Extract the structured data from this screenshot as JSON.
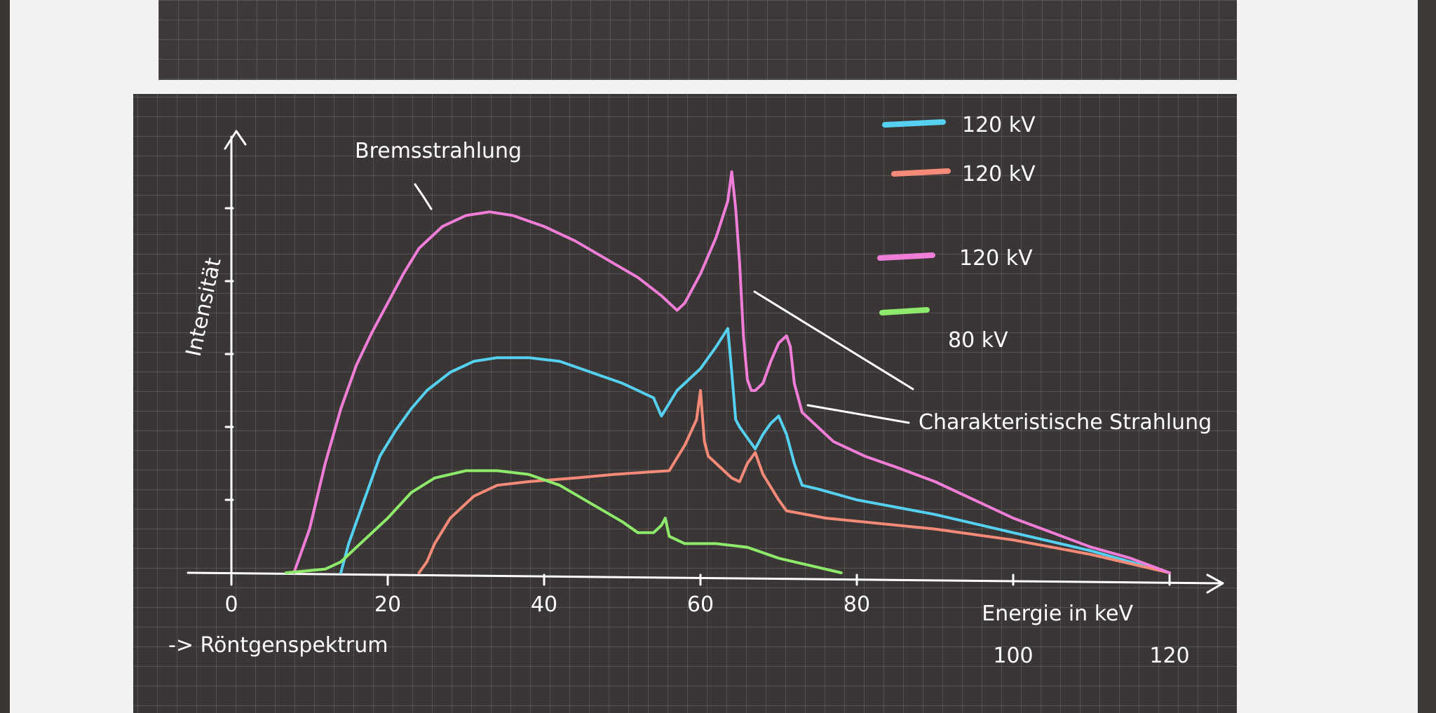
{
  "chart_data": {
    "type": "line",
    "title": "",
    "xlabel": "Energie in keV",
    "ylabel": "Intensität",
    "caption": "-> Röntgenspektrum",
    "xlim": [
      0,
      123
    ],
    "ylim": [
      0,
      100
    ],
    "x_ticks": [
      {
        "value": 0,
        "label": "0"
      },
      {
        "value": 20,
        "label": "20"
      },
      {
        "value": 40,
        "label": "40"
      },
      {
        "value": 60,
        "label": "60"
      },
      {
        "value": 80,
        "label": "80"
      },
      {
        "value": 100,
        "label": "100"
      },
      {
        "value": 120,
        "label": "120"
      }
    ],
    "y_ticks": [
      20,
      40,
      60,
      80,
      100
    ],
    "grid": true,
    "legend_position": "top-right",
    "annotations": [
      {
        "text": "Bremsstrahlung",
        "points_to": "continuous spectrum"
      },
      {
        "text": "Charakteristische Strahlung",
        "points_to": "peaks"
      }
    ],
    "series": [
      {
        "name": "120 kV",
        "color": "#55d0f0",
        "points": [
          [
            14,
            0
          ],
          [
            15,
            8
          ],
          [
            17,
            20
          ],
          [
            19,
            32
          ],
          [
            21,
            39
          ],
          [
            23,
            45
          ],
          [
            25,
            50
          ],
          [
            28,
            55
          ],
          [
            31,
            58
          ],
          [
            34,
            59
          ],
          [
            38,
            59
          ],
          [
            42,
            58
          ],
          [
            46,
            55
          ],
          [
            50,
            52
          ],
          [
            54,
            48
          ],
          [
            55,
            43
          ],
          [
            57,
            50
          ],
          [
            60,
            56
          ],
          [
            62,
            62
          ],
          [
            63.5,
            67
          ],
          [
            64,
            55
          ],
          [
            64.5,
            42
          ],
          [
            65,
            40
          ],
          [
            66,
            37
          ],
          [
            67,
            34
          ],
          [
            68,
            38
          ],
          [
            69,
            41
          ],
          [
            70,
            43
          ],
          [
            71,
            38
          ],
          [
            72,
            30
          ],
          [
            73,
            24
          ],
          [
            75,
            23
          ],
          [
            80,
            20
          ],
          [
            90,
            16
          ],
          [
            100,
            11
          ],
          [
            110,
            6
          ],
          [
            120,
            0
          ]
        ]
      },
      {
        "name": "120 kV",
        "color": "#f58a78",
        "points": [
          [
            24,
            0
          ],
          [
            25,
            3
          ],
          [
            26,
            8
          ],
          [
            28,
            15
          ],
          [
            31,
            21
          ],
          [
            34,
            24
          ],
          [
            38,
            25
          ],
          [
            44,
            26
          ],
          [
            49,
            27
          ],
          [
            56,
            28
          ],
          [
            58,
            35
          ],
          [
            59.5,
            42
          ],
          [
            60,
            50
          ],
          [
            60.5,
            36
          ],
          [
            61,
            32
          ],
          [
            62,
            30
          ],
          [
            64,
            26
          ],
          [
            65,
            25
          ],
          [
            66,
            30
          ],
          [
            67,
            33
          ],
          [
            67.5,
            30
          ],
          [
            68,
            27
          ],
          [
            70,
            20
          ],
          [
            71,
            17
          ],
          [
            76,
            15
          ],
          [
            90,
            12
          ],
          [
            100,
            9
          ],
          [
            110,
            5
          ],
          [
            120,
            0
          ]
        ]
      },
      {
        "name": "120 kV",
        "color": "#f07ed8",
        "points": [
          [
            8,
            0
          ],
          [
            10,
            12
          ],
          [
            12,
            30
          ],
          [
            14,
            45
          ],
          [
            16,
            57
          ],
          [
            18,
            66
          ],
          [
            20,
            74
          ],
          [
            22,
            82
          ],
          [
            24,
            89
          ],
          [
            27,
            95
          ],
          [
            30,
            98
          ],
          [
            33,
            99
          ],
          [
            36,
            98
          ],
          [
            40,
            95
          ],
          [
            44,
            91
          ],
          [
            48,
            86
          ],
          [
            52,
            81
          ],
          [
            55,
            76
          ],
          [
            57,
            72
          ],
          [
            58,
            74
          ],
          [
            60,
            82
          ],
          [
            62,
            92
          ],
          [
            63.5,
            102
          ],
          [
            64,
            110
          ],
          [
            64.5,
            100
          ],
          [
            65,
            85
          ],
          [
            65.5,
            65
          ],
          [
            66,
            53
          ],
          [
            66.5,
            50
          ],
          [
            67,
            50
          ],
          [
            68,
            52
          ],
          [
            69,
            58
          ],
          [
            70,
            63
          ],
          [
            71,
            65
          ],
          [
            71.5,
            62
          ],
          [
            72,
            52
          ],
          [
            73,
            44
          ],
          [
            75,
            40
          ],
          [
            77,
            36
          ],
          [
            81,
            32
          ],
          [
            85,
            29
          ],
          [
            90,
            25
          ],
          [
            95,
            20
          ],
          [
            100,
            15
          ],
          [
            105,
            11
          ],
          [
            110,
            7
          ],
          [
            115,
            4
          ],
          [
            120,
            0
          ]
        ]
      },
      {
        "name": "80 kV",
        "color": "#8eea6a",
        "points": [
          [
            7,
            0
          ],
          [
            12,
            1
          ],
          [
            14,
            3
          ],
          [
            17,
            9
          ],
          [
            20,
            15
          ],
          [
            23,
            22
          ],
          [
            26,
            26
          ],
          [
            30,
            28
          ],
          [
            34,
            28
          ],
          [
            38,
            27
          ],
          [
            42,
            24
          ],
          [
            46,
            19
          ],
          [
            50,
            14
          ],
          [
            52,
            11
          ],
          [
            54,
            11
          ],
          [
            55,
            13
          ],
          [
            55.5,
            15
          ],
          [
            56,
            10
          ],
          [
            58,
            8
          ],
          [
            62,
            8
          ],
          [
            66,
            7
          ],
          [
            70,
            4
          ],
          [
            74,
            2
          ],
          [
            78,
            0
          ]
        ]
      }
    ]
  }
}
